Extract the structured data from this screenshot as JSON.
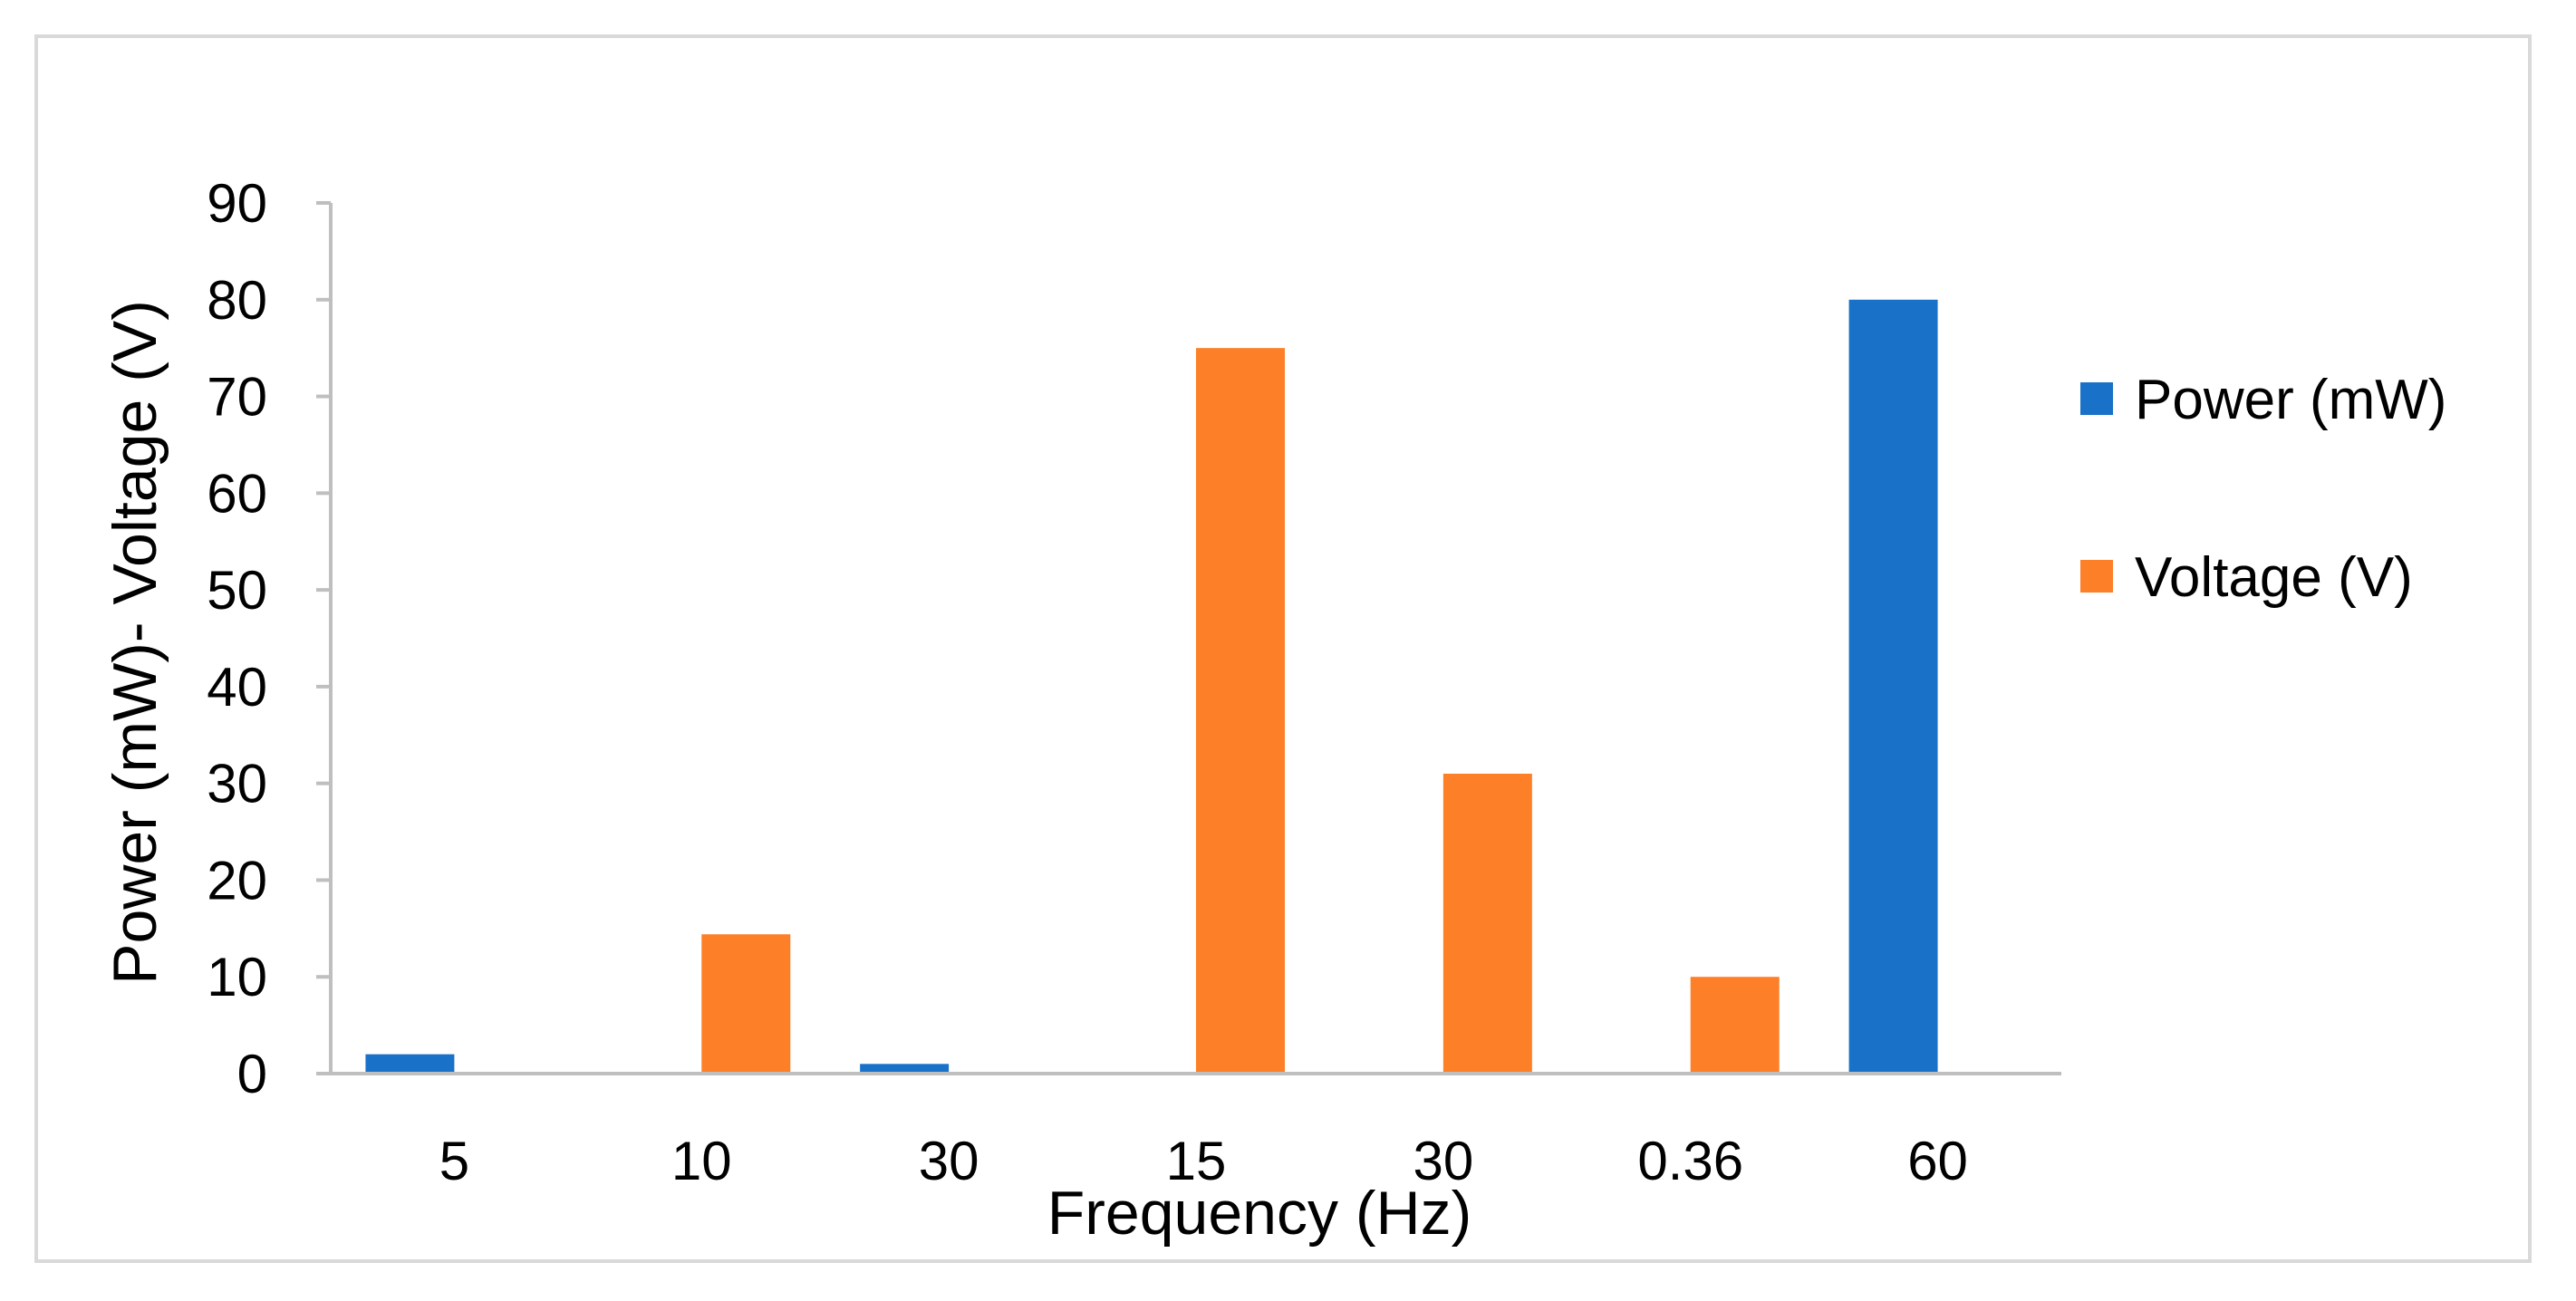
{
  "chart_data": {
    "type": "bar",
    "categories": [
      "5",
      "10",
      "30",
      "15",
      "30",
      "0.36",
      "60"
    ],
    "series": [
      {
        "name": "Power (mW)",
        "color": "#1a72c8",
        "values": [
          2,
          0,
          1,
          0,
          0,
          0,
          80
        ]
      },
      {
        "name": "Voltage (V)",
        "color": "#fd7f27",
        "values": [
          0,
          14.4,
          0,
          75,
          31,
          10,
          0
        ]
      }
    ],
    "title": "",
    "xlabel": "Frequency (Hz)",
    "ylabel": "Power (mW)- Voltage (V)",
    "ylim": [
      0,
      90
    ],
    "yticks": [
      0,
      10,
      20,
      30,
      40,
      50,
      60,
      70,
      80,
      90
    ],
    "grid": false,
    "legend": "right",
    "axis_color": "#bfbfbf"
  }
}
